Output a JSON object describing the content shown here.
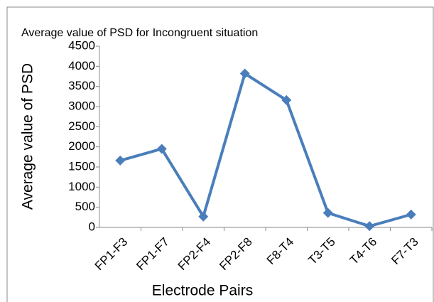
{
  "chart_data": {
    "type": "line",
    "title": "Average value of PSD for Incongruent situation",
    "x_label": "Electrode Pairs",
    "y_label": "Average value of PSD",
    "categories": [
      "FP1-F3",
      "FP1-F7",
      "FP2-F4",
      "FP2-F8",
      "F8-T4",
      "T3-T5",
      "T4-T6",
      "F7-T3"
    ],
    "series": [
      {
        "name": "Average value of PSD",
        "color": "#4a7ebb",
        "values": [
          1660,
          1950,
          270,
          3820,
          3160,
          360,
          30,
          320
        ]
      }
    ],
    "ylim": [
      0,
      4500
    ],
    "yticks": [
      0,
      500,
      1000,
      1500,
      2000,
      2500,
      3000,
      3500,
      4000,
      4500
    ]
  }
}
